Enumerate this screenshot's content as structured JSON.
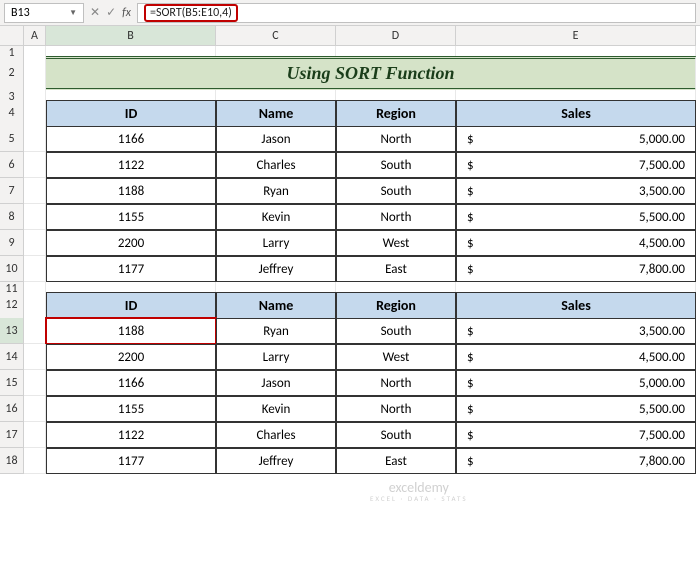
{
  "nameBox": "B13",
  "formulaBar": "=SORT(B5:E10,4)",
  "columns": [
    "A",
    "B",
    "C",
    "D",
    "E"
  ],
  "rows": [
    "1",
    "2",
    "3",
    "4",
    "5",
    "6",
    "7",
    "8",
    "9",
    "10",
    "11",
    "12",
    "13",
    "14",
    "15",
    "16",
    "17",
    "18"
  ],
  "title": "Using SORT Function",
  "headers": {
    "id": "ID",
    "name": "Name",
    "region": "Region",
    "sales": "Sales"
  },
  "table1": [
    {
      "id": "1166",
      "name": "Jason",
      "region": "North",
      "sales": "5,000.00"
    },
    {
      "id": "1122",
      "name": "Charles",
      "region": "South",
      "sales": "7,500.00"
    },
    {
      "id": "1188",
      "name": "Ryan",
      "region": "South",
      "sales": "3,500.00"
    },
    {
      "id": "1155",
      "name": "Kevin",
      "region": "North",
      "sales": "5,500.00"
    },
    {
      "id": "2200",
      "name": "Larry",
      "region": "West",
      "sales": "4,500.00"
    },
    {
      "id": "1177",
      "name": "Jeffrey",
      "region": "East",
      "sales": "7,800.00"
    }
  ],
  "table2": [
    {
      "id": "1188",
      "name": "Ryan",
      "region": "South",
      "sales": "3,500.00"
    },
    {
      "id": "2200",
      "name": "Larry",
      "region": "West",
      "sales": "4,500.00"
    },
    {
      "id": "1166",
      "name": "Jason",
      "region": "North",
      "sales": "5,000.00"
    },
    {
      "id": "1155",
      "name": "Kevin",
      "region": "North",
      "sales": "5,500.00"
    },
    {
      "id": "1122",
      "name": "Charles",
      "region": "South",
      "sales": "7,500.00"
    },
    {
      "id": "1177",
      "name": "Jeffrey",
      "region": "East",
      "sales": "7,800.00"
    }
  ],
  "currency": "$",
  "colors": {
    "title_bg": "#d5e3c8",
    "header_bg": "#c5d9ed",
    "formula_hl": "#c00000",
    "active_cell": "#c00000"
  },
  "watermark": {
    "main": "exceldemy",
    "sub": "EXCEL · DATA · STATS"
  }
}
